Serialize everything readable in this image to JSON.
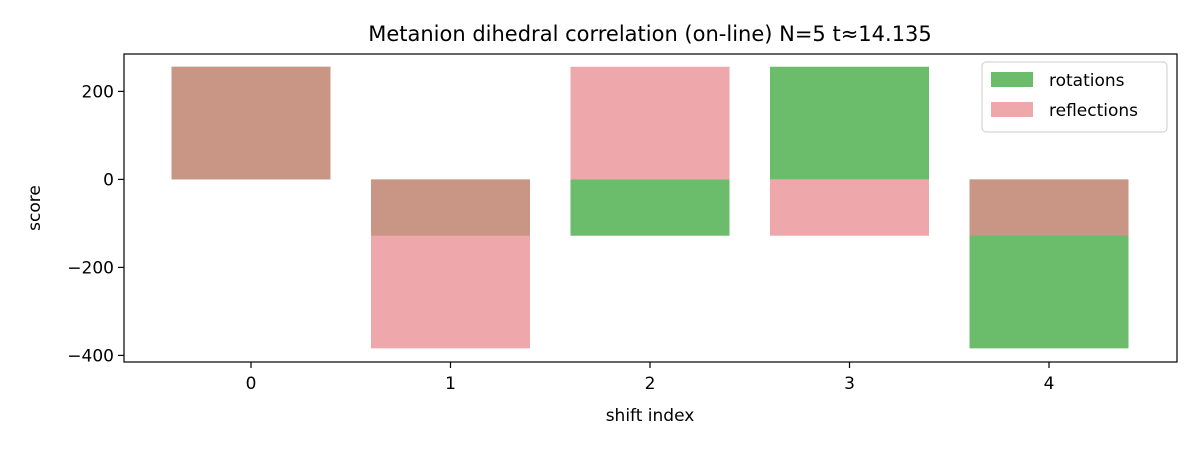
{
  "chart_data": {
    "type": "bar",
    "title": "Metanion dihedral correlation (on-line) N=5 t≈14.135",
    "xlabel": "shift index",
    "ylabel": "score",
    "categories": [
      "0",
      "1",
      "2",
      "3",
      "4"
    ],
    "ylim": [
      -415,
      285
    ],
    "yticks": [
      200,
      0,
      -200,
      -400
    ],
    "ytick_labels": [
      "200",
      "0",
      "−200",
      "−400"
    ],
    "series": [
      {
        "name": "rotations",
        "color": "#2ca02c",
        "opacity": 0.7,
        "values": [
          256,
          -128,
          -128,
          256,
          -384
        ]
      },
      {
        "name": "reflections",
        "color": "#e88a8d",
        "opacity": 0.75,
        "values": [
          256,
          -384,
          256,
          -128,
          -128
        ]
      }
    ],
    "legend_position": "top-right",
    "grid": false
  }
}
